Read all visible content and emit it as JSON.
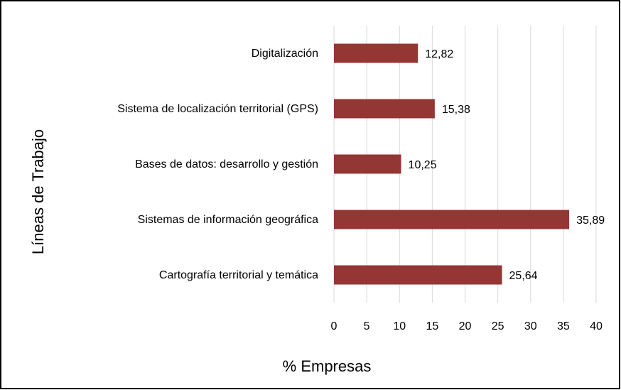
{
  "chart_data": {
    "type": "bar",
    "orientation": "horizontal",
    "xlabel": "% Empresas",
    "ylabel": "Líneas de Trabajo",
    "categories": [
      "Digitalización",
      "Sistema de localización territorial (GPS)",
      "Bases de datos: desarrollo y gestión",
      "Sistemas de información geográfica",
      "Cartografía territorial y temática"
    ],
    "values": [
      12.82,
      15.38,
      10.25,
      35.89,
      25.64
    ],
    "value_labels": [
      "12,82",
      "15,38",
      "10,25",
      "35,89",
      "25,64"
    ],
    "color": "#943634",
    "xlim": [
      0,
      40
    ],
    "xticks": [
      0,
      5,
      10,
      15,
      20,
      25,
      30,
      35,
      40
    ],
    "grid": true
  }
}
